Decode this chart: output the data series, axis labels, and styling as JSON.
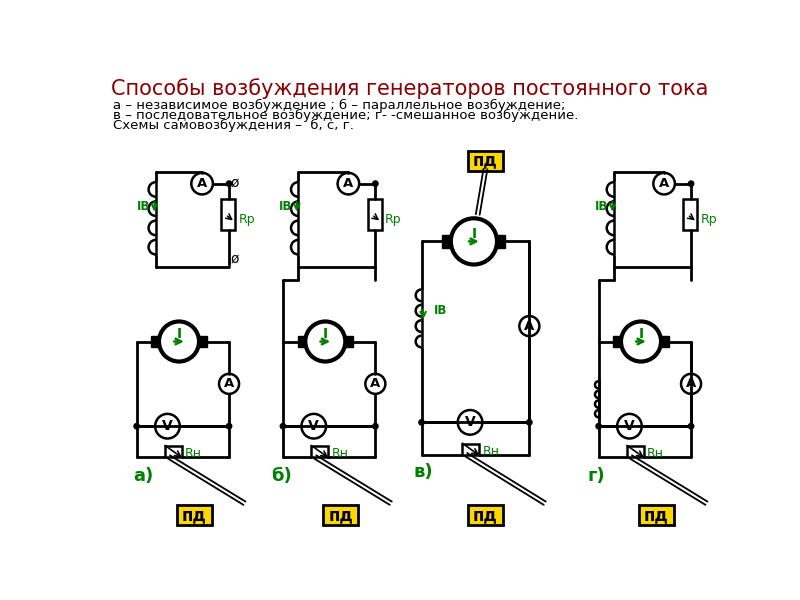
{
  "title": "Способы возбуждения генераторов постоянного тока",
  "title_color": "#8B0000",
  "title_fontsize": 15,
  "subtitle_lines": [
    "а – независимое возбуждение ; б – параллельное возбуждение;",
    "в – последовательное возбуждение; г- -смешанное возбуждение.",
    "Схемы самовозбуждения –  б, с, г."
  ],
  "subtitle_fontsize": 9.5,
  "subtitle_color": "#000000",
  "label_color": "#008000",
  "background_color": "#ffffff",
  "pd_bg": "#FFD700",
  "pd_text": "пд",
  "diagram_labels": [
    "а)",
    "б)",
    "в)",
    "г)"
  ],
  "rn_label": "Rн",
  "rp_label": "Rp",
  "iv_label": "IВ",
  "i_label": "I"
}
